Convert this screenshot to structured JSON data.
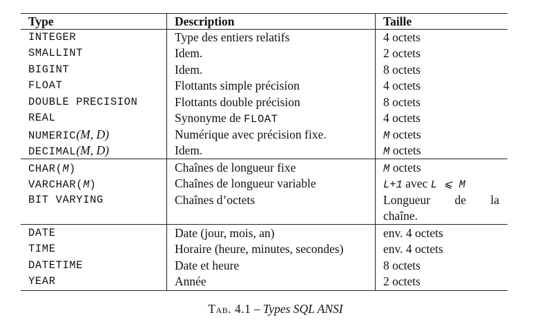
{
  "table": {
    "headers": {
      "type": "Type",
      "description": "Description",
      "size": "Taille"
    },
    "rows": [
      {
        "type": "INTEGER",
        "description": "Type des entiers relatifs",
        "size": "4 octets"
      },
      {
        "type": "SMALLINT",
        "description": "Idem.",
        "size": "2 octets"
      },
      {
        "type": "BIGINT",
        "description": "Idem.",
        "size": "8 octets"
      },
      {
        "type": "FLOAT",
        "description": "Flottants simple précision",
        "size": "4 octets"
      },
      {
        "type": "DOUBLE PRECISION",
        "description": "Flottants double précision",
        "size": "8 octets"
      },
      {
        "type": "REAL",
        "description_prefix": "Synonyme de",
        "description_code": "FLOAT",
        "size": "4 octets"
      },
      {
        "type": "NUMERIC",
        "type_args": "(M, D)",
        "description": "Numérique avec précision fixe.",
        "size_var": "M",
        "size": "octets"
      },
      {
        "type": "DECIMAL",
        "type_args": "(M, D)",
        "description": "Idem.",
        "size_var": "M",
        "size": "octets"
      },
      {
        "type": "CHAR(",
        "type_var": "M",
        "type_close": ")",
        "description": "Chaînes de longueur fixe",
        "size_var": "M",
        "size": "octets"
      },
      {
        "type": "VARCHAR(",
        "type_var": "M",
        "type_close": ")",
        "description": "Chaînes de longueur variable",
        "size_expr": "L+1",
        "size_mid": "avec",
        "size_cond": "L ⩽ M"
      },
      {
        "type": "BIT VARYING",
        "description": "Chaînes d’octets",
        "size_words": [
          "Longueur",
          "de",
          "la"
        ],
        "size_line2": "chaîne."
      },
      {
        "type": "DATE",
        "description": "Date (jour, mois, an)",
        "size": "env. 4 octets"
      },
      {
        "type": "TIME",
        "description": "Horaire (heure, minutes, secondes)",
        "size": "env. 4 octets"
      },
      {
        "type": "DATETIME",
        "description": "Date et heure",
        "size": "8 octets"
      },
      {
        "type": "YEAR",
        "description": "Année",
        "size": "2 octets"
      }
    ]
  },
  "caption": {
    "label": "Tab. 4.1",
    "dash": "–",
    "title": "Types SQL ANSI"
  }
}
